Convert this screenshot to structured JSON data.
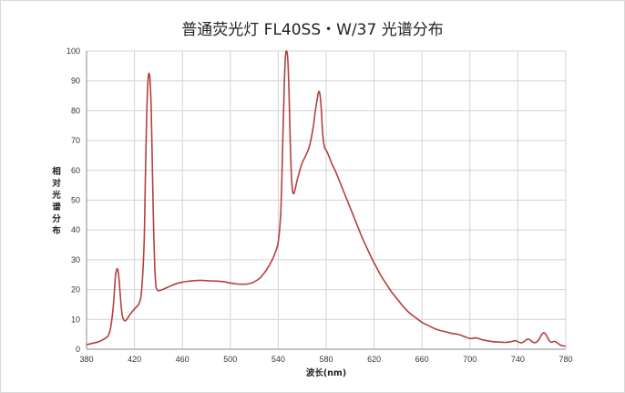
{
  "chart_data": {
    "type": "line",
    "title": "普通荧光灯 FL40SS・W/37 光谱分布",
    "xlabel": "波长(nm)",
    "ylabel_chars": [
      "相",
      "对",
      "光",
      "谱",
      "分",
      "布"
    ],
    "xlim": [
      380,
      780
    ],
    "ylim": [
      0,
      100
    ],
    "x_ticks": [
      380,
      420,
      460,
      500,
      540,
      580,
      620,
      660,
      700,
      740,
      780
    ],
    "y_ticks": [
      0,
      10,
      20,
      30,
      40,
      50,
      60,
      70,
      80,
      90,
      100
    ],
    "grid": true,
    "legend": "none",
    "series": [
      {
        "color": "#b5403d",
        "x": [
          380,
          385,
          390,
          395,
          398,
          400,
          402,
          403,
          404,
          405,
          406,
          407,
          408,
          409,
          410,
          412,
          414,
          416,
          420,
          424,
          426,
          428,
          429,
          430,
          431,
          432,
          433,
          434,
          435,
          436,
          437,
          438,
          439,
          440,
          442,
          445,
          450,
          455,
          460,
          465,
          470,
          475,
          480,
          485,
          490,
          495,
          500,
          505,
          510,
          515,
          520,
          525,
          530,
          535,
          538,
          540,
          542,
          543,
          544,
          545,
          546,
          547,
          548,
          549,
          550,
          551,
          552,
          553,
          554,
          556,
          558,
          560,
          563,
          566,
          569,
          571,
          573,
          574,
          575,
          576,
          577,
          578,
          579,
          580,
          581,
          582,
          583,
          585,
          588,
          591,
          594,
          597,
          600,
          603,
          606,
          610,
          614,
          618,
          622,
          626,
          630,
          635,
          640,
          645,
          650,
          655,
          660,
          665,
          670,
          675,
          680,
          685,
          690,
          695,
          700,
          705,
          710,
          715,
          720,
          725,
          730,
          735,
          738,
          740,
          742,
          744,
          746,
          748,
          750,
          752,
          754,
          756,
          758,
          760,
          762,
          764,
          766,
          768,
          770,
          772,
          774,
          776,
          778,
          780
        ],
        "values": [
          1.5,
          2.0,
          2.5,
          3.5,
          4.5,
          7,
          13,
          18,
          24,
          26.5,
          26.8,
          24,
          19,
          14,
          11,
          9.5,
          10.3,
          11.5,
          13.5,
          15.5,
          20,
          35,
          55,
          75,
          88,
          92.5,
          90,
          80,
          60,
          40,
          27,
          21,
          20,
          19.6,
          19.8,
          20.3,
          21.2,
          22.0,
          22.5,
          22.8,
          23.0,
          23.1,
          23.0,
          22.9,
          22.8,
          22.6,
          22.2,
          21.9,
          21.8,
          21.9,
          22.6,
          24.0,
          26.5,
          30.0,
          33.0,
          36.0,
          45,
          57,
          73,
          88,
          98,
          100,
          97,
          86,
          70,
          58,
          53,
          52.2,
          53.5,
          57,
          60,
          62.5,
          65,
          68,
          74,
          80,
          85,
          86.5,
          85,
          80,
          73,
          69,
          67.3,
          66.7,
          66,
          65,
          64,
          62,
          59.5,
          56.5,
          53.5,
          50.5,
          47.5,
          44.5,
          41.5,
          37.5,
          34.0,
          30.5,
          27.5,
          24.5,
          22.0,
          19.0,
          16.5,
          14.0,
          12.0,
          10.5,
          9.0,
          8.0,
          7.0,
          6.3,
          5.8,
          5.3,
          5.0,
          4.3,
          3.6,
          3.8,
          3.2,
          2.8,
          2.5,
          2.4,
          2.3,
          2.6,
          2.9,
          2.5,
          2.2,
          2.3,
          2.8,
          3.4,
          3.2,
          2.5,
          2.2,
          2.5,
          3.5,
          5.0,
          5.5,
          4.5,
          3.0,
          2.3,
          2.6,
          2.4,
          1.8,
          1.3,
          1.1,
          1.0
        ]
      }
    ]
  }
}
